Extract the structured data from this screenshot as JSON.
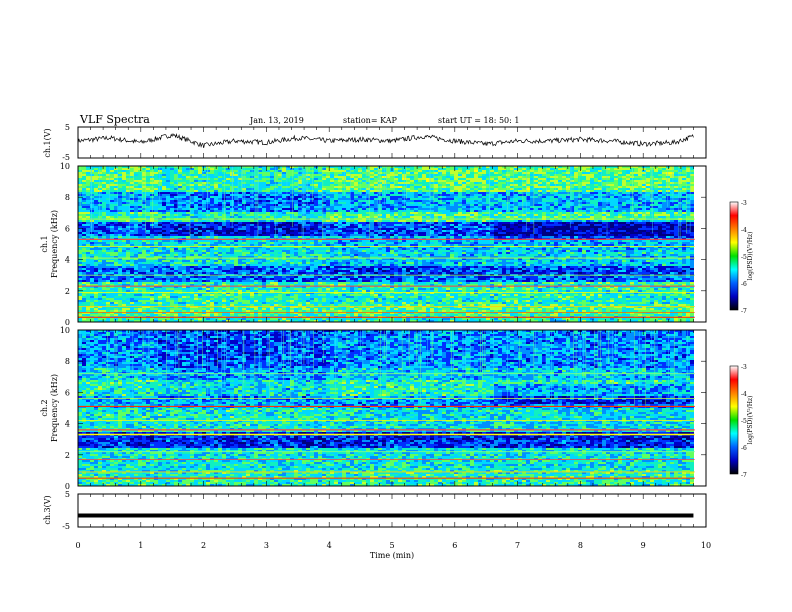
{
  "header": {
    "title": "VLF Spectra",
    "date": "Jan. 13, 2019",
    "station": "station= KAP",
    "start": "start  UT =   18: 50: 1"
  },
  "colorbar": {
    "label": "log(PSD)(V²/Hz)",
    "ticks": [
      "-3",
      "-4",
      "-5",
      "-6",
      "-7"
    ],
    "colors": [
      "#ffffff",
      "#ff0000",
      "#ff8000",
      "#ffff00",
      "#00e000",
      "#00ffff",
      "#0060ff",
      "#0000c0",
      "#000000"
    ]
  },
  "chart_data": [
    {
      "type": "line",
      "ylabel": "ch.1(V)",
      "ylim": [
        -5,
        5
      ],
      "y_ticks": [
        "5",
        "-5"
      ],
      "x_range": [
        0,
        10
      ],
      "description_values": {
        "x": [
          0,
          0.5,
          1.0,
          1.5,
          2.0,
          2.5,
          3.0,
          3.5,
          4.0,
          4.5,
          5.0,
          5.5,
          6.0,
          6.5,
          7.0,
          7.5,
          8.0,
          8.5,
          9.0,
          9.5,
          9.8
        ],
        "y": [
          0.5,
          1.5,
          0,
          2.5,
          -1,
          0.5,
          0,
          1.5,
          0.5,
          1,
          0.5,
          2,
          0.5,
          -0.5,
          0.5,
          0.5,
          1,
          0.5,
          -0.5,
          0,
          2
        ]
      }
    },
    {
      "type": "heatmap",
      "ylabel": "ch.1\nFrequency (kHz)",
      "ylim": [
        0,
        10
      ],
      "y_ticks": [
        "10",
        "8",
        "6",
        "4",
        "2",
        "0"
      ],
      "xlim": [
        0,
        10
      ]
    },
    {
      "type": "heatmap",
      "ylabel": "ch.2\nFrequency (kHz)",
      "ylim": [
        0,
        10
      ],
      "y_ticks": [
        "10",
        "8",
        "6",
        "4",
        "2",
        "0"
      ],
      "xlim": [
        0,
        10
      ]
    },
    {
      "type": "line",
      "ylabel": "ch.3(V)",
      "ylim": [
        -5,
        5
      ],
      "y_ticks": [
        "5",
        "-5"
      ],
      "x": [
        0,
        9.8
      ],
      "y": [
        -1.5,
        -1.5
      ],
      "xlabel": "Time (min)",
      "x_ticks": [
        "0",
        "1",
        "2",
        "3",
        "4",
        "5",
        "6",
        "7",
        "8",
        "9",
        "10"
      ],
      "xlim": [
        0,
        10
      ]
    }
  ]
}
